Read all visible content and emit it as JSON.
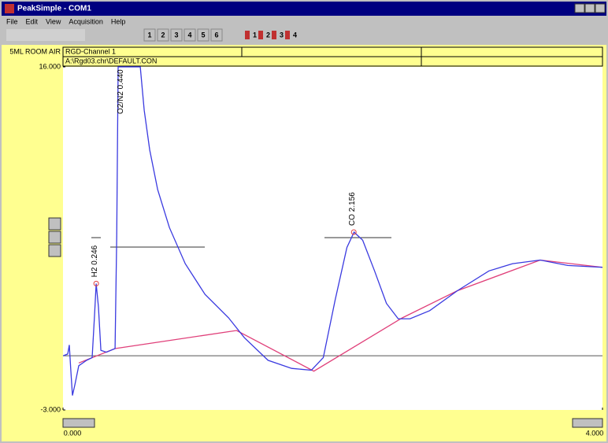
{
  "window": {
    "title": "PeakSimple - COM1"
  },
  "menu": [
    "File",
    "Edit",
    "View",
    "Acquisition",
    "Help"
  ],
  "toolbar": {
    "buttons": [
      "1",
      "2",
      "3",
      "4",
      "5",
      "6"
    ],
    "channel_buttons": [
      "1",
      "2",
      "3",
      "4"
    ]
  },
  "header": {
    "sample": "5ML ROOM AIR",
    "channel": "RGD-Channel 1",
    "file": "A:\\Rgd03.chr\\DEFAULT.CON"
  },
  "chart_data": {
    "type": "line",
    "xlim": [
      0,
      4
    ],
    "ylim": [
      -3,
      16
    ],
    "xticks": [
      {
        "value": 0,
        "label": "0.000"
      },
      {
        "value": 4,
        "label": "4.000"
      }
    ],
    "yticks": [
      {
        "value": 16,
        "label": "16.000"
      },
      {
        "value": -3,
        "label": "-3.000"
      }
    ],
    "series": [
      {
        "color": "#3a3ae0",
        "x": [
          0,
          0.035,
          0.047,
          0.058,
          0.07,
          0.088,
          0.117,
          0.175,
          0.216,
          0.234,
          0.246,
          0.263,
          0.281,
          0.322,
          0.386,
          0.398,
          0.409,
          0.573,
          0.602,
          0.643,
          0.702,
          0.789,
          0.906,
          1.053,
          1.228,
          1.345,
          1.52,
          1.696,
          1.842,
          1.93,
          2.018,
          2.105,
          2.158,
          2.222,
          2.31,
          2.398,
          2.485,
          2.573,
          2.719,
          2.924,
          3.158,
          3.333,
          3.538,
          3.743,
          4.0
        ],
        "values": [
          0,
          0.1,
          0.6,
          -0.8,
          -2.2,
          -1.6,
          -0.55,
          -0.25,
          -0.1,
          2.3,
          4.0,
          2.7,
          0.3,
          0.2,
          0.4,
          6.6,
          16,
          16,
          13.6,
          11.4,
          9.2,
          7.1,
          5.1,
          3.4,
          2.1,
          1.0,
          -0.25,
          -0.7,
          -0.8,
          -0.1,
          3.1,
          6.0,
          6.85,
          6.4,
          4.7,
          2.9,
          2.05,
          2.05,
          2.5,
          3.6,
          4.7,
          5.1,
          5.3,
          5.0,
          4.9
        ]
      },
      {
        "color": "#e0407a",
        "x": [
          0.117,
          0.386,
          1.287,
          1.86,
          2.515,
          2.924,
          3.538,
          4.0
        ],
        "values": [
          -0.4,
          0.4,
          1.4,
          -0.85,
          2.1,
          3.6,
          5.3,
          4.9
        ]
      }
    ],
    "annotations": [
      {
        "text": "H2 0.246",
        "x": 0.246,
        "y": 4.0
      },
      {
        "text": "O2/N2 0.440",
        "x": 0.44
      },
      {
        "text": "CO 2.156",
        "x": 2.156,
        "y": 6.85
      }
    ]
  }
}
